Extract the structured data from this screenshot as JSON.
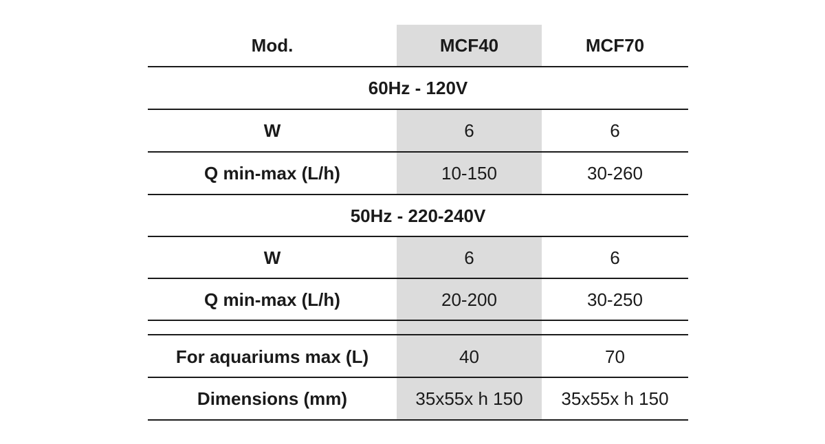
{
  "header": {
    "label": "Mod.",
    "model_a": "MCF40",
    "model_b": "MCF70"
  },
  "sections": [
    {
      "title": "60Hz - 120V",
      "rows": [
        {
          "label": "W",
          "a": "6",
          "b": "6"
        },
        {
          "label": "Q min-max (L/h)",
          "a": "10-150",
          "b": "30-260"
        }
      ]
    },
    {
      "title": "50Hz - 220-240V",
      "rows": [
        {
          "label": "W",
          "a": "6",
          "b": "6"
        },
        {
          "label": "Q min-max (L/h)",
          "a": "20-200",
          "b": "30-250"
        }
      ]
    }
  ],
  "footer_rows": [
    {
      "label": "For aquariums max (L)",
      "a": "40",
      "b": "70"
    },
    {
      "label": "Dimensions (mm)",
      "a": "35x55x h 150",
      "b": "35x55x h 150"
    }
  ],
  "colors": {
    "highlight": "#dcdcdc",
    "rule": "#1a1a1a"
  }
}
